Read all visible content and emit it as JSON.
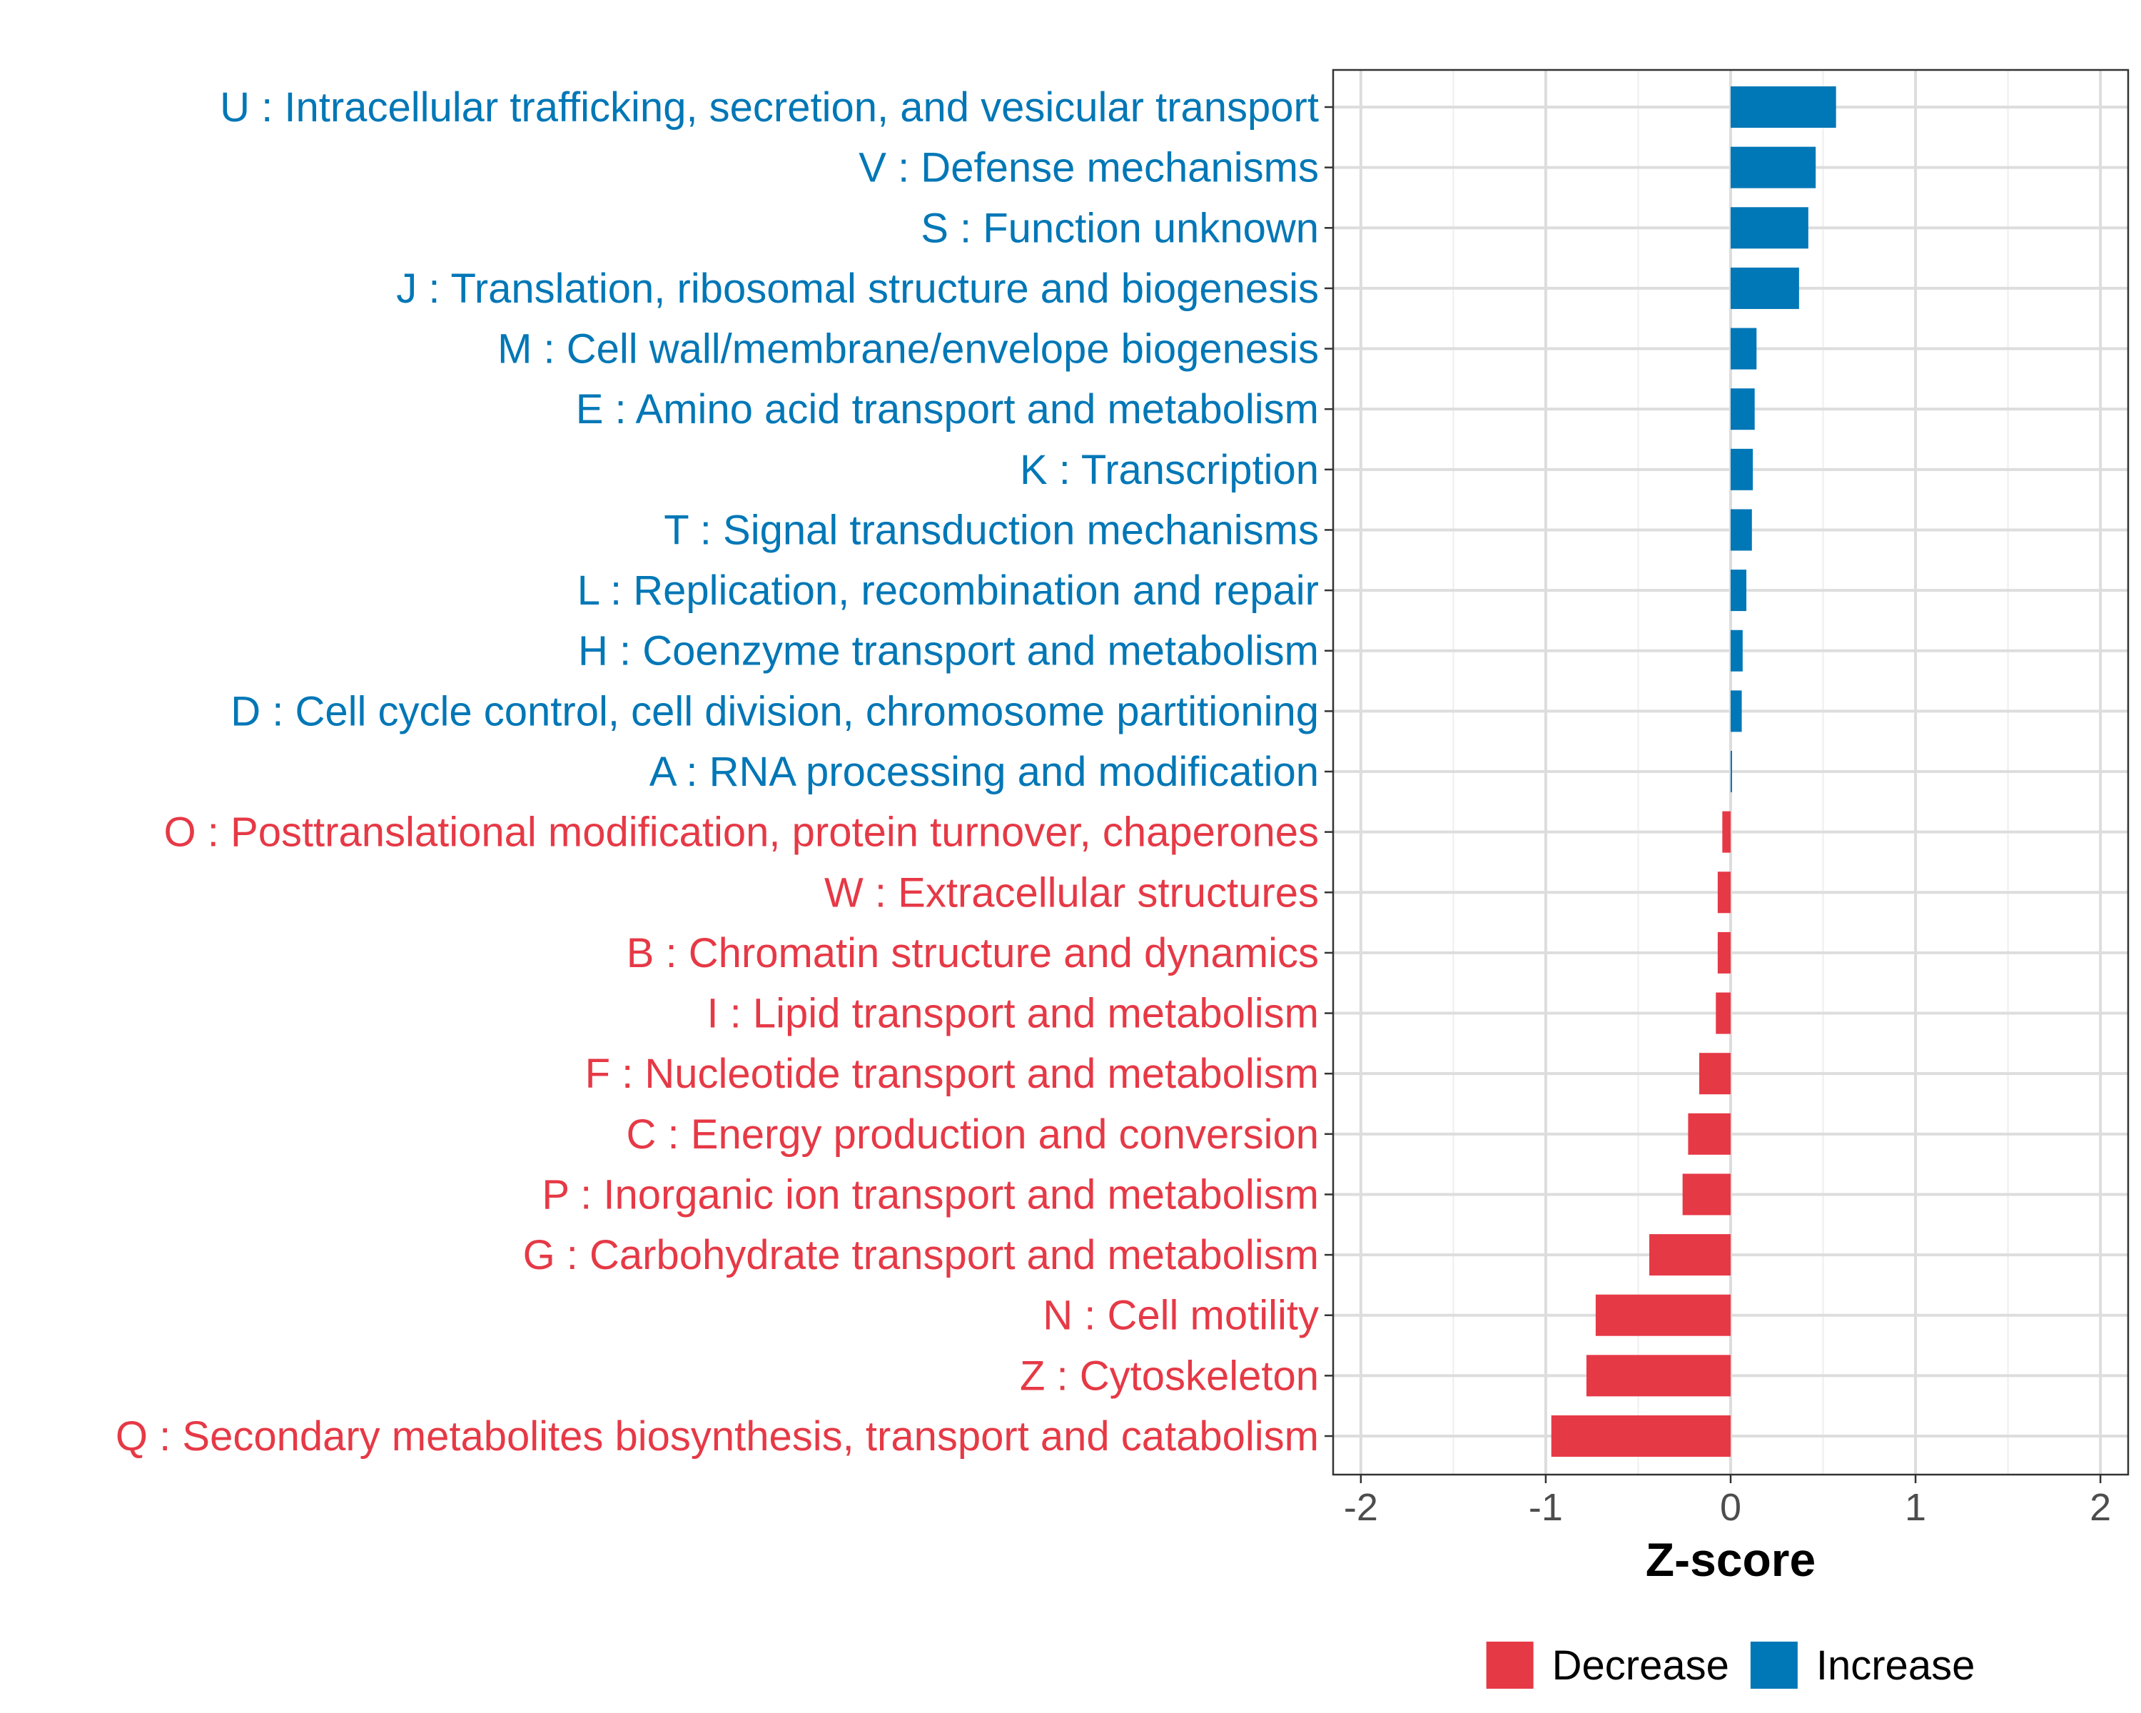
{
  "chart_data": {
    "type": "bar",
    "orientation": "horizontal",
    "categories": [
      "U : Intracellular trafficking, secretion, and vesicular transport",
      "V : Defense mechanisms",
      "S : Function unknown",
      "J : Translation, ribosomal structure and biogenesis",
      "M : Cell wall/membrane/envelope biogenesis",
      "E : Amino acid transport and metabolism",
      "K : Transcription",
      "T : Signal transduction mechanisms",
      "L : Replication, recombination and repair",
      "H : Coenzyme transport and metabolism",
      "D : Cell cycle control, cell division, chromosome partitioning",
      "A : RNA processing and modification",
      "O : Posttranslational modification, protein turnover, chaperones",
      "W : Extracellular structures",
      "B : Chromatin structure and dynamics",
      "I : Lipid transport and metabolism",
      "F : Nucleotide transport and metabolism",
      "C : Energy production and conversion",
      "P : Inorganic ion transport and metabolism",
      "G : Carbohydrate transport and metabolism",
      "N : Cell motility",
      "Z : Cytoskeleton",
      "Q : Secondary metabolites biosynthesis, transport and catabolism"
    ],
    "values": [
      0.57,
      0.46,
      0.42,
      0.37,
      0.14,
      0.13,
      0.12,
      0.115,
      0.085,
      0.065,
      0.06,
      0.005,
      -0.045,
      -0.07,
      -0.07,
      -0.08,
      -0.17,
      -0.23,
      -0.26,
      -0.44,
      -0.73,
      -0.78,
      -0.97
    ],
    "groups": [
      "Increase",
      "Increase",
      "Increase",
      "Increase",
      "Increase",
      "Increase",
      "Increase",
      "Increase",
      "Increase",
      "Increase",
      "Increase",
      "Increase",
      "Decrease",
      "Decrease",
      "Decrease",
      "Decrease",
      "Decrease",
      "Decrease",
      "Decrease",
      "Decrease",
      "Decrease",
      "Decrease",
      "Decrease"
    ],
    "xlabel": "Z-score",
    "ylabel": "",
    "xlim": [
      -2.15,
      2.15
    ],
    "xticks": [
      -2,
      -1,
      0,
      1,
      2
    ],
    "xtick_labels": [
      "-2",
      "-1",
      "0",
      "1",
      "2"
    ],
    "grid": true,
    "legend": {
      "position": "bottom",
      "entries": [
        {
          "label": "Decrease",
          "color": "#e63946"
        },
        {
          "label": "Increase",
          "color": "#0077b6"
        }
      ]
    },
    "colors": {
      "Decrease": "#e63946",
      "Increase": "#0077b6"
    }
  }
}
